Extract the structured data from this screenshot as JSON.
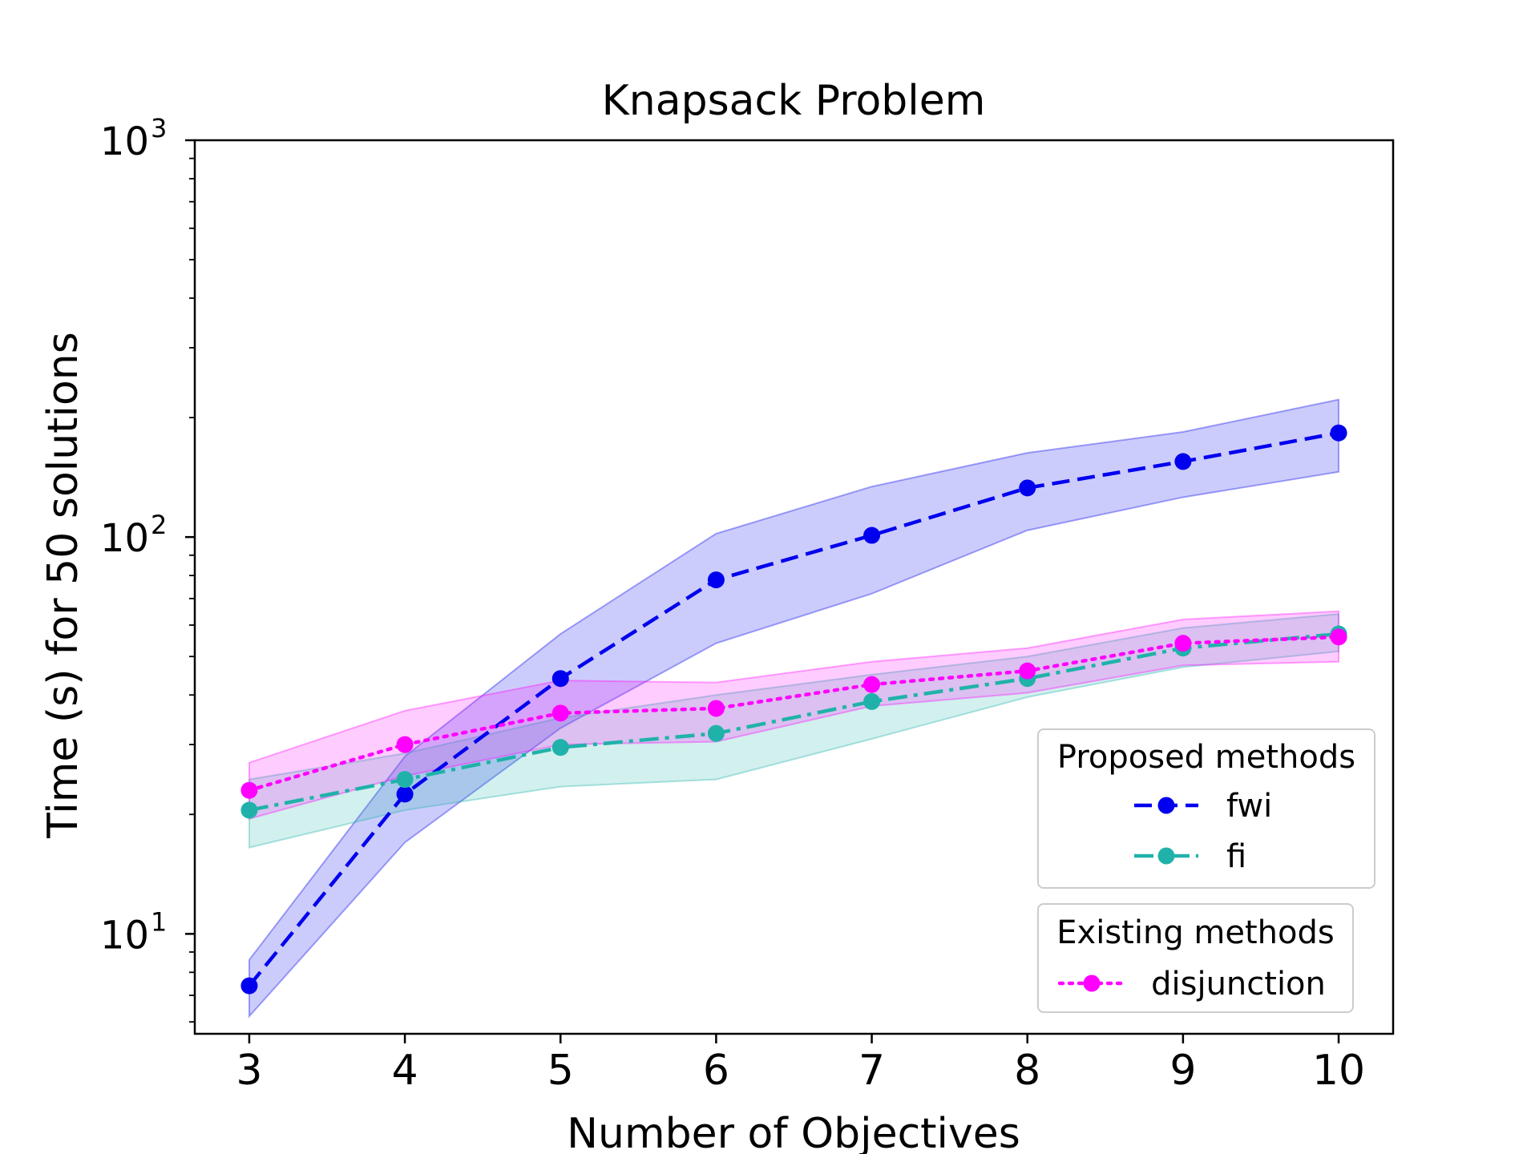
{
  "chart_data": {
    "type": "line",
    "title": "Knapsack Problem",
    "xlabel": "Number of Objectives",
    "ylabel": "Time (s) for 50 solutions",
    "yscale": "log",
    "xlim": [
      2.65,
      10.35
    ],
    "ylim": [
      5.6,
      1000
    ],
    "x": [
      3,
      4,
      5,
      6,
      7,
      8,
      9,
      10
    ],
    "x_ticks": [
      3,
      4,
      5,
      6,
      7,
      8,
      9,
      10
    ],
    "y_ticks": [
      {
        "value": 10,
        "base": "10",
        "exp": "1"
      },
      {
        "value": 100,
        "base": "10",
        "exp": "2"
      },
      {
        "value": 1000,
        "base": "10",
        "exp": "3"
      }
    ],
    "grid": false,
    "series": [
      {
        "name": "fwi",
        "group": 0,
        "color": "#0000ee",
        "dash": "dashed",
        "values": [
          7.4,
          22.5,
          44,
          78,
          101,
          133,
          155,
          183
        ],
        "lower": [
          6.2,
          17,
          33,
          54,
          72,
          104,
          126,
          146
        ],
        "upper": [
          8.6,
          28,
          57,
          102,
          134,
          163,
          184,
          222
        ]
      },
      {
        "name": "fi",
        "group": 0,
        "color": "#20b2aa",
        "dash": "dashdot",
        "values": [
          20.5,
          24.5,
          29.5,
          32,
          38.5,
          44,
          52.5,
          57
        ],
        "lower": [
          16.5,
          20.5,
          23.5,
          24.5,
          31,
          39.5,
          47,
          51.5
        ],
        "upper": [
          24.5,
          28.5,
          35,
          40,
          45,
          50,
          59,
          64
        ]
      },
      {
        "name": "disjunction",
        "group": 1,
        "color": "#ff00ff",
        "dash": "dotted",
        "values": [
          23,
          30,
          36,
          37,
          42.5,
          46,
          54,
          56
        ],
        "lower": [
          19.5,
          25,
          30,
          30.5,
          37.5,
          40.5,
          47.5,
          48.5
        ],
        "upper": [
          27,
          36.5,
          43.5,
          43,
          48.5,
          52.5,
          62,
          65
        ]
      }
    ],
    "legend": {
      "placement": "bottom-right",
      "groups": [
        {
          "title": "Proposed methods",
          "entries": [
            "fwi",
            "fi"
          ]
        },
        {
          "title": "Existing methods",
          "entries": [
            "disjunction"
          ]
        }
      ]
    }
  }
}
